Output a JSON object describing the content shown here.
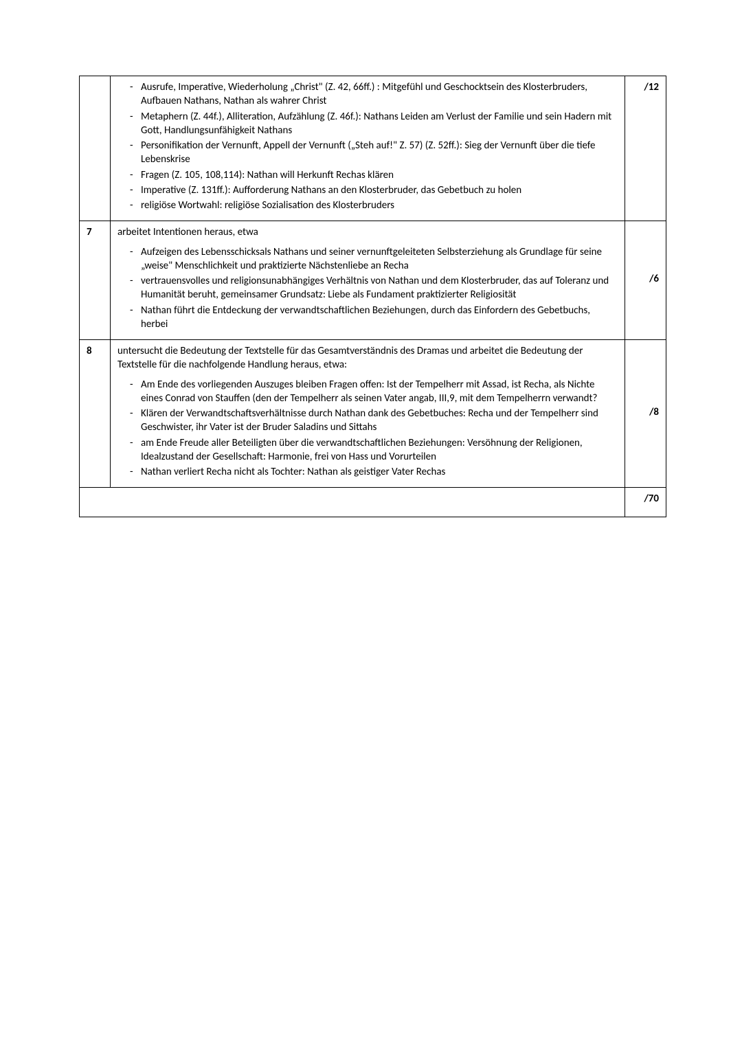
{
  "rows": [
    {
      "number": "",
      "intro": "",
      "bullets": [
        "Ausrufe, Imperative, Wiederholung „Christ\" (Z. 42, 66ff.) : Mitgefühl und Geschocktsein des Klosterbruders,  Aufbauen Nathans, Nathan als wahrer Christ",
        "Metaphern (Z. 44f.), Alliteration, Aufzählung (Z. 46f.): Nathans Leiden am Verlust der Familie und sein Hadern mit Gott, Handlungsunfähigkeit Nathans",
        " Personifikation der Vernunft, Appell der Vernunft („Steh auf!\" Z. 57) (Z. 52ff.): Sieg der Vernunft über die tiefe Lebenskrise",
        "Fragen (Z. 105, 108,114): Nathan will Herkunft Rechas klären",
        "Imperative (Z. 131ff.): Aufforderung Nathans an den Klosterbruder, das Gebetbuch zu holen",
        "religiöse Wortwahl: religiöse Sozialisation des Klosterbruders"
      ],
      "points": "/12",
      "pointsValign": "top"
    },
    {
      "number": "7",
      "intro": "arbeitet Intentionen heraus, etwa",
      "bullets": [
        "Aufzeigen des Lebensschicksals Nathans und seiner vernunftgeleiteten Selbsterziehung als Grundlage für seine „weise\" Menschlichkeit und praktizierte Nächstenliebe an Recha",
        "vertrauensvolles und religionsunabhängiges Verhältnis von Nathan und dem Klosterbruder, das auf Toleranz und Humanität beruht, gemeinsamer Grundsatz: Liebe als Fundament praktizierter Religiosität",
        "Nathan führt die Entdeckung der verwandtschaftlichen Beziehungen, durch das Einfordern des Gebetbuchs, herbei"
      ],
      "points": "/6",
      "pointsValign": "middle"
    },
    {
      "number": "8",
      "intro": "untersucht die Bedeutung der Textstelle für das Gesamtverständnis des Dramas und arbeitet die Bedeutung der Textstelle für die nachfolgende Handlung heraus, etwa:",
      "bullets": [
        "Am Ende des vorliegenden Auszuges bleiben Fragen offen: Ist der Tempelherr mit Assad, ist Recha, als Nichte eines Conrad von Stauffen (den der Tempelherr als seinen Vater angab, III,9, mit dem Tempelherrn verwandt?",
        "Klären der Verwandtschaftsverhältnisse durch Nathan dank des Gebetbuches: Recha und der Tempelherr sind Geschwister, ihr Vater ist der Bruder Saladins und Sittahs",
        "am Ende Freude aller Beteiligten über die verwandtschaftlichen Beziehungen: Versöhnung der Religionen, Idealzustand der Gesellschaft: Harmonie, frei von Hass und Vorurteilen",
        "Nathan verliert Recha nicht als Tochter: Nathan als geistiger Vater Rechas"
      ],
      "points": "/8",
      "pointsValign": "middle"
    }
  ],
  "total": "/70"
}
